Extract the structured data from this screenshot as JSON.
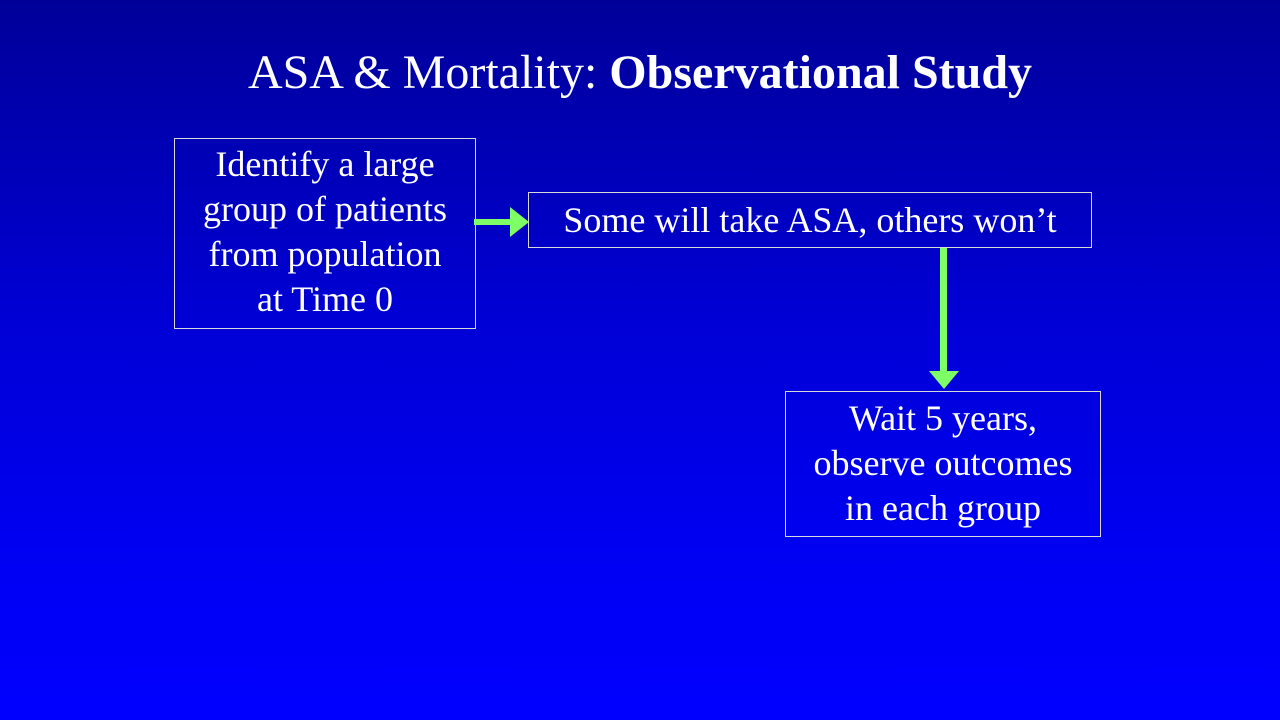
{
  "slide": {
    "title_normal": "ASA & Mortality: ",
    "title_bold": "Observational Study",
    "boxes": {
      "identify": {
        "line1": "Identify a large",
        "line2": "group of patients",
        "line3": "from population",
        "line4": "at Time 0"
      },
      "split": {
        "text": "Some will take ASA, others won’t"
      },
      "wait": {
        "line1": "Wait 5 years,",
        "line2": "observe outcomes",
        "line3": "in each group"
      }
    },
    "colors": {
      "background_top": "#000099",
      "background_bottom": "#0000ff",
      "arrow": "#7fff66",
      "box_border": "#d8d8d8",
      "text": "#ffffff"
    }
  }
}
